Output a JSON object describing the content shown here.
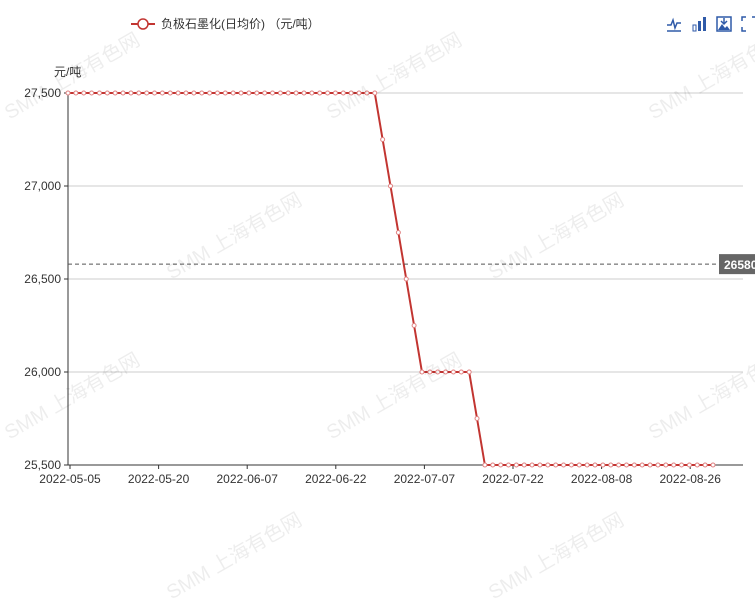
{
  "chart_data": {
    "type": "line",
    "legend": [
      "负极石墨化(日均价) （元/吨）"
    ],
    "legend_placement": "top",
    "ylabel": "元/吨",
    "ylim": [
      25500,
      27500
    ],
    "yticks": [
      "25,500",
      "26,000",
      "26,500",
      "27,000",
      "27,500"
    ],
    "ytick_values": [
      25500,
      26000,
      26500,
      27000,
      27500
    ],
    "xticks": [
      "2022-05-05",
      "2022-05-20",
      "2022-06-07",
      "2022-06-22",
      "2022-07-07",
      "2022-07-22",
      "2022-08-08",
      "2022-08-26"
    ],
    "grid": "horizontal",
    "series": [
      {
        "name": "负极石墨化(日均价) （元/吨）",
        "color": "#c23531",
        "values": [
          27500,
          27500,
          27500,
          27500,
          27500,
          27500,
          27500,
          27500,
          27500,
          27500,
          27500,
          27500,
          27500,
          27500,
          27500,
          27500,
          27500,
          27500,
          27500,
          27500,
          27500,
          27500,
          27500,
          27500,
          27500,
          27500,
          27500,
          27500,
          27500,
          27500,
          27500,
          27500,
          27500,
          27500,
          27500,
          27500,
          27500,
          27500,
          27500,
          27500,
          27250,
          27000,
          26750,
          26500,
          26250,
          26000,
          26000,
          26000,
          26000,
          26000,
          26000,
          26000,
          25750,
          25500,
          25500,
          25500,
          25500,
          25500,
          25500,
          25500,
          25500,
          25500,
          25500,
          25500,
          25500,
          25500,
          25500,
          25500,
          25500,
          25500,
          25500,
          25500,
          25500,
          25500,
          25500,
          25500,
          25500,
          25500,
          25500,
          25500,
          25500,
          25500,
          25500
        ]
      }
    ],
    "markline": {
      "type": "average",
      "value": 26580,
      "label": "26580"
    }
  },
  "toolbox": [
    "line-chart-icon",
    "bar-chart-icon",
    "save-image-icon",
    "fullscreen-icon"
  ],
  "watermark": "SMM 上海有色网"
}
